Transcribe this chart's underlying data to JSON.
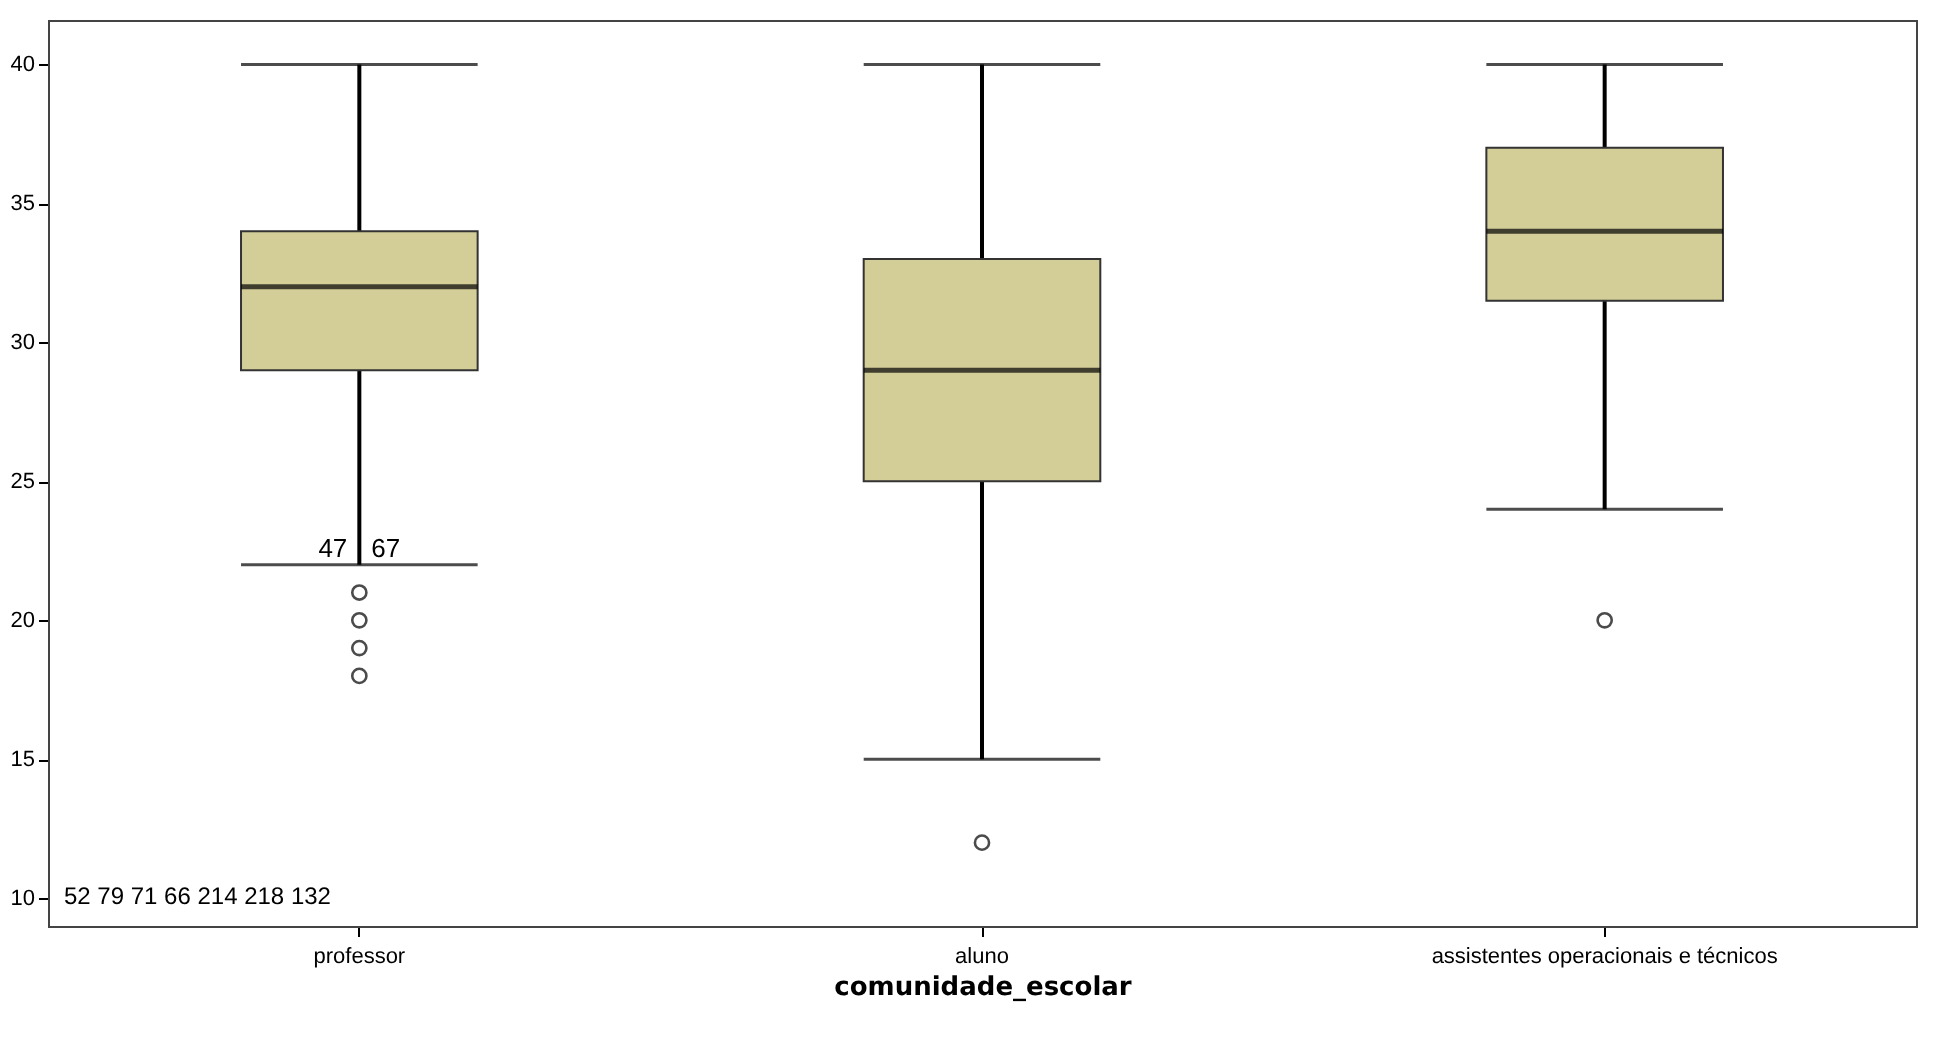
{
  "chart_data": {
    "type": "box",
    "xlabel": "comunidade_escolar",
    "categories": [
      "professor",
      "aluno",
      "assistentes operacionais e técnicos"
    ],
    "series": [
      {
        "color": "#d3ce97",
        "boxes": [
          {
            "low": 22,
            "q1": 29,
            "median": 32,
            "q3": 34,
            "high": 40,
            "outliers": [
              21,
              20,
              19,
              18
            ]
          },
          {
            "low": 15,
            "q1": 25,
            "median": 29,
            "q3": 33,
            "high": 40,
            "outliers": [
              12
            ]
          },
          {
            "low": 24,
            "q1": 31.5,
            "median": 34,
            "q3": 37,
            "high": 40,
            "outliers": [
              20
            ]
          }
        ]
      }
    ],
    "ylim": [
      9,
      41.6
    ],
    "yticks": [
      10,
      15,
      20,
      25,
      30,
      35,
      40
    ],
    "grid": false,
    "marker": "circle",
    "annotations": [
      {
        "text": "47",
        "x": "professor",
        "y": 22
      },
      {
        "text": "67",
        "x": "professor",
        "y": 22
      },
      "52",
      "79",
      "71",
      "66",
      "214",
      "218",
      "132"
    ]
  }
}
